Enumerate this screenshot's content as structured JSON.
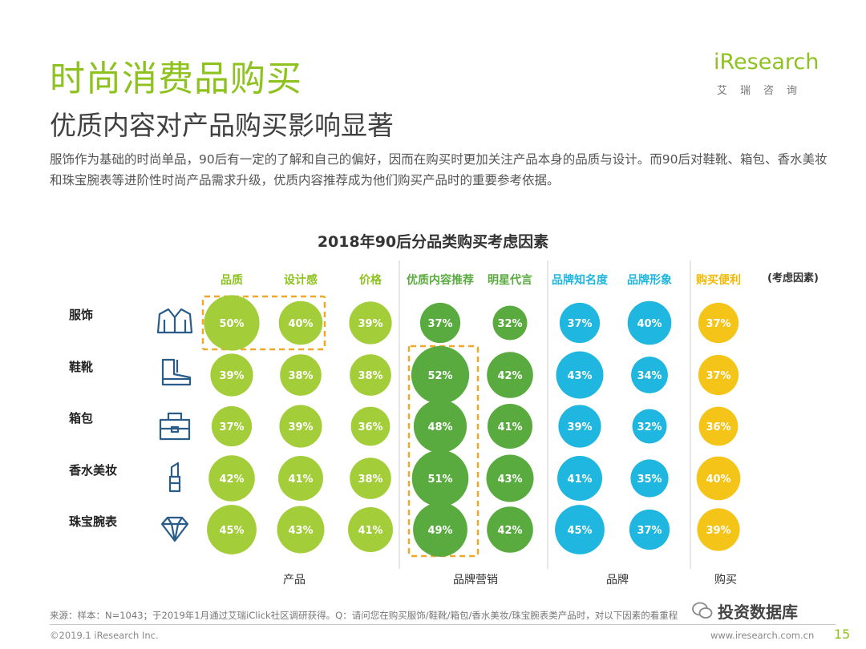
{
  "header": {
    "title": "时尚消费品购买",
    "subtitle": "优质内容对产品购买影响显著",
    "intro": "服饰作为基础的时尚单品，90后有一定的了解和自己的偏好，因而在购买时更加关注产品本身的品质与设计。而90后对鞋靴、箱包、香水美妆和珠宝腕表等进阶性时尚产品需求升级，优质内容推荐成为他们购买产品时的重要参考依据。"
  },
  "logo": {
    "name": "iResearch",
    "sub": "艾瑞咨询"
  },
  "chart_data": {
    "type": "bubble-matrix",
    "title": "2018年90后分品类购买考虑因素",
    "column_header_suffix": "(考虑因素)",
    "columns": [
      {
        "label": "品质",
        "group": "产品"
      },
      {
        "label": "设计感",
        "group": "产品"
      },
      {
        "label": "价格",
        "group": "产品"
      },
      {
        "label": "优质内容推荐",
        "group": "品牌营销"
      },
      {
        "label": "明星代言",
        "group": "品牌营销"
      },
      {
        "label": "品牌知名度",
        "group": "品牌"
      },
      {
        "label": "品牌形象",
        "group": "品牌"
      },
      {
        "label": "购买便利",
        "group": "购买"
      }
    ],
    "groups": [
      "产品",
      "品牌营销",
      "品牌",
      "购买"
    ],
    "rows": [
      {
        "label": "服饰",
        "icon": "jacket-icon",
        "values": [
          50,
          40,
          39,
          37,
          32,
          37,
          40,
          37
        ]
      },
      {
        "label": "鞋靴",
        "icon": "boot-icon",
        "values": [
          39,
          38,
          38,
          52,
          42,
          43,
          34,
          37
        ]
      },
      {
        "label": "箱包",
        "icon": "bag-icon",
        "values": [
          37,
          39,
          36,
          48,
          41,
          39,
          32,
          36
        ]
      },
      {
        "label": "香水美妆",
        "icon": "lipstick-icon",
        "values": [
          42,
          41,
          38,
          51,
          43,
          41,
          35,
          40
        ]
      },
      {
        "label": "珠宝腕表",
        "icon": "diamond-icon",
        "values": [
          45,
          43,
          41,
          49,
          42,
          45,
          37,
          39
        ]
      }
    ],
    "unit": "%",
    "colors": {
      "product": "#a3cd39",
      "marketing": "#5aab3f",
      "brand": "#1fb6e0",
      "purchase": "#f5c418",
      "highlight": "#f0a828",
      "column_label_product": "#8dc21f",
      "column_label_marketing": "#5aab3f",
      "column_label_brand": "#1fb6e0",
      "column_label_purchase": "#f5b800",
      "icon": "#2a5c8a"
    }
  },
  "footer": {
    "source": "来源：样本：N=1043；于2019年1月通过艾瑞iClick社区调研获得。Q：请问您在购买服饰/鞋靴/箱包/香水美妆/珠宝腕表类产品时，对以下因素的看重程",
    "copyright": "©2019.1 iResearch Inc.",
    "site": "www.iresearch.com.cn",
    "page": "15",
    "watermark": "投资数据库"
  }
}
